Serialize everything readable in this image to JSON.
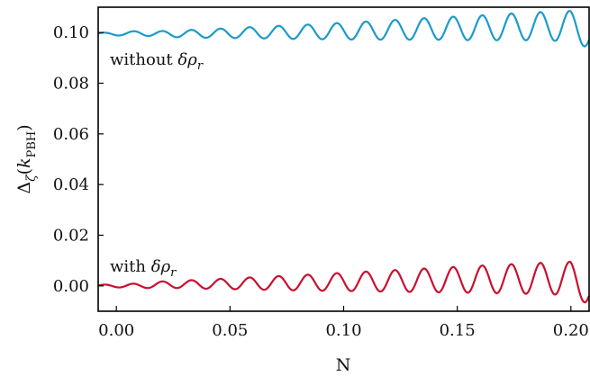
{
  "chart_data": {
    "type": "line",
    "title": "",
    "xlabel": "N",
    "ylabel": {
      "main": "Δ",
      "sub1": "ζ",
      "paren_open": "(",
      "italic": "k",
      "sub2": "PBH",
      "paren_close": ")"
    },
    "xlim": [
      -0.008,
      0.208
    ],
    "ylim": [
      -0.01,
      0.11
    ],
    "x_ticks": [
      0.0,
      0.05,
      0.1,
      0.15,
      0.2
    ],
    "x_tick_labels": [
      "0.00",
      "0.05",
      "0.10",
      "0.15",
      "0.20"
    ],
    "y_ticks": [
      0.0,
      0.02,
      0.04,
      0.06,
      0.08,
      0.1
    ],
    "y_tick_labels": [
      "0.00",
      "0.02",
      "0.04",
      "0.06",
      "0.08",
      "0.10"
    ],
    "grid": false,
    "legend": "none",
    "series": [
      {
        "name": "without δρ_r",
        "label_parts": {
          "text": "without ",
          "delta": "δ",
          "rho": "ρ",
          "sub": "r"
        },
        "color": "#1a9bc9",
        "baseline": 0.0995,
        "x": [
          -0.008,
          0.0,
          0.01,
          0.02,
          0.04,
          0.06,
          0.08,
          0.1,
          0.12,
          0.14,
          0.16,
          0.18,
          0.2,
          0.208
        ],
        "y": [
          0.0995,
          0.0993,
          0.1003,
          0.0993,
          0.0998,
          0.1008,
          0.1015,
          0.1025,
          0.1038,
          0.1053,
          0.1062,
          0.1078,
          0.1082,
          0.101
        ],
        "oscillation": {
          "period": 0.0128,
          "amplitude_start": 0.0004,
          "amplitude_end": 0.0062,
          "phase": 0.3
        }
      },
      {
        "name": "with δρ_r",
        "label_parts": {
          "text": "with ",
          "delta": "δ",
          "rho": "ρ",
          "sub": "r"
        },
        "color": "#c8102e",
        "baseline": 0.0,
        "x": [
          -0.008,
          0.0,
          0.01,
          0.02,
          0.04,
          0.06,
          0.08,
          0.1,
          0.12,
          0.14,
          0.16,
          0.18,
          0.2,
          0.208
        ],
        "y": [
          0.0,
          0.0002,
          0.0,
          0.0015,
          0.002,
          0.0028,
          0.0035,
          0.0045,
          0.0055,
          0.0065,
          0.0075,
          0.0082,
          0.0085,
          -0.002
        ],
        "oscillation": {
          "period": 0.0128,
          "amplitude_start": 0.0004,
          "amplitude_end": 0.0068,
          "phase": 0.3
        }
      }
    ]
  }
}
